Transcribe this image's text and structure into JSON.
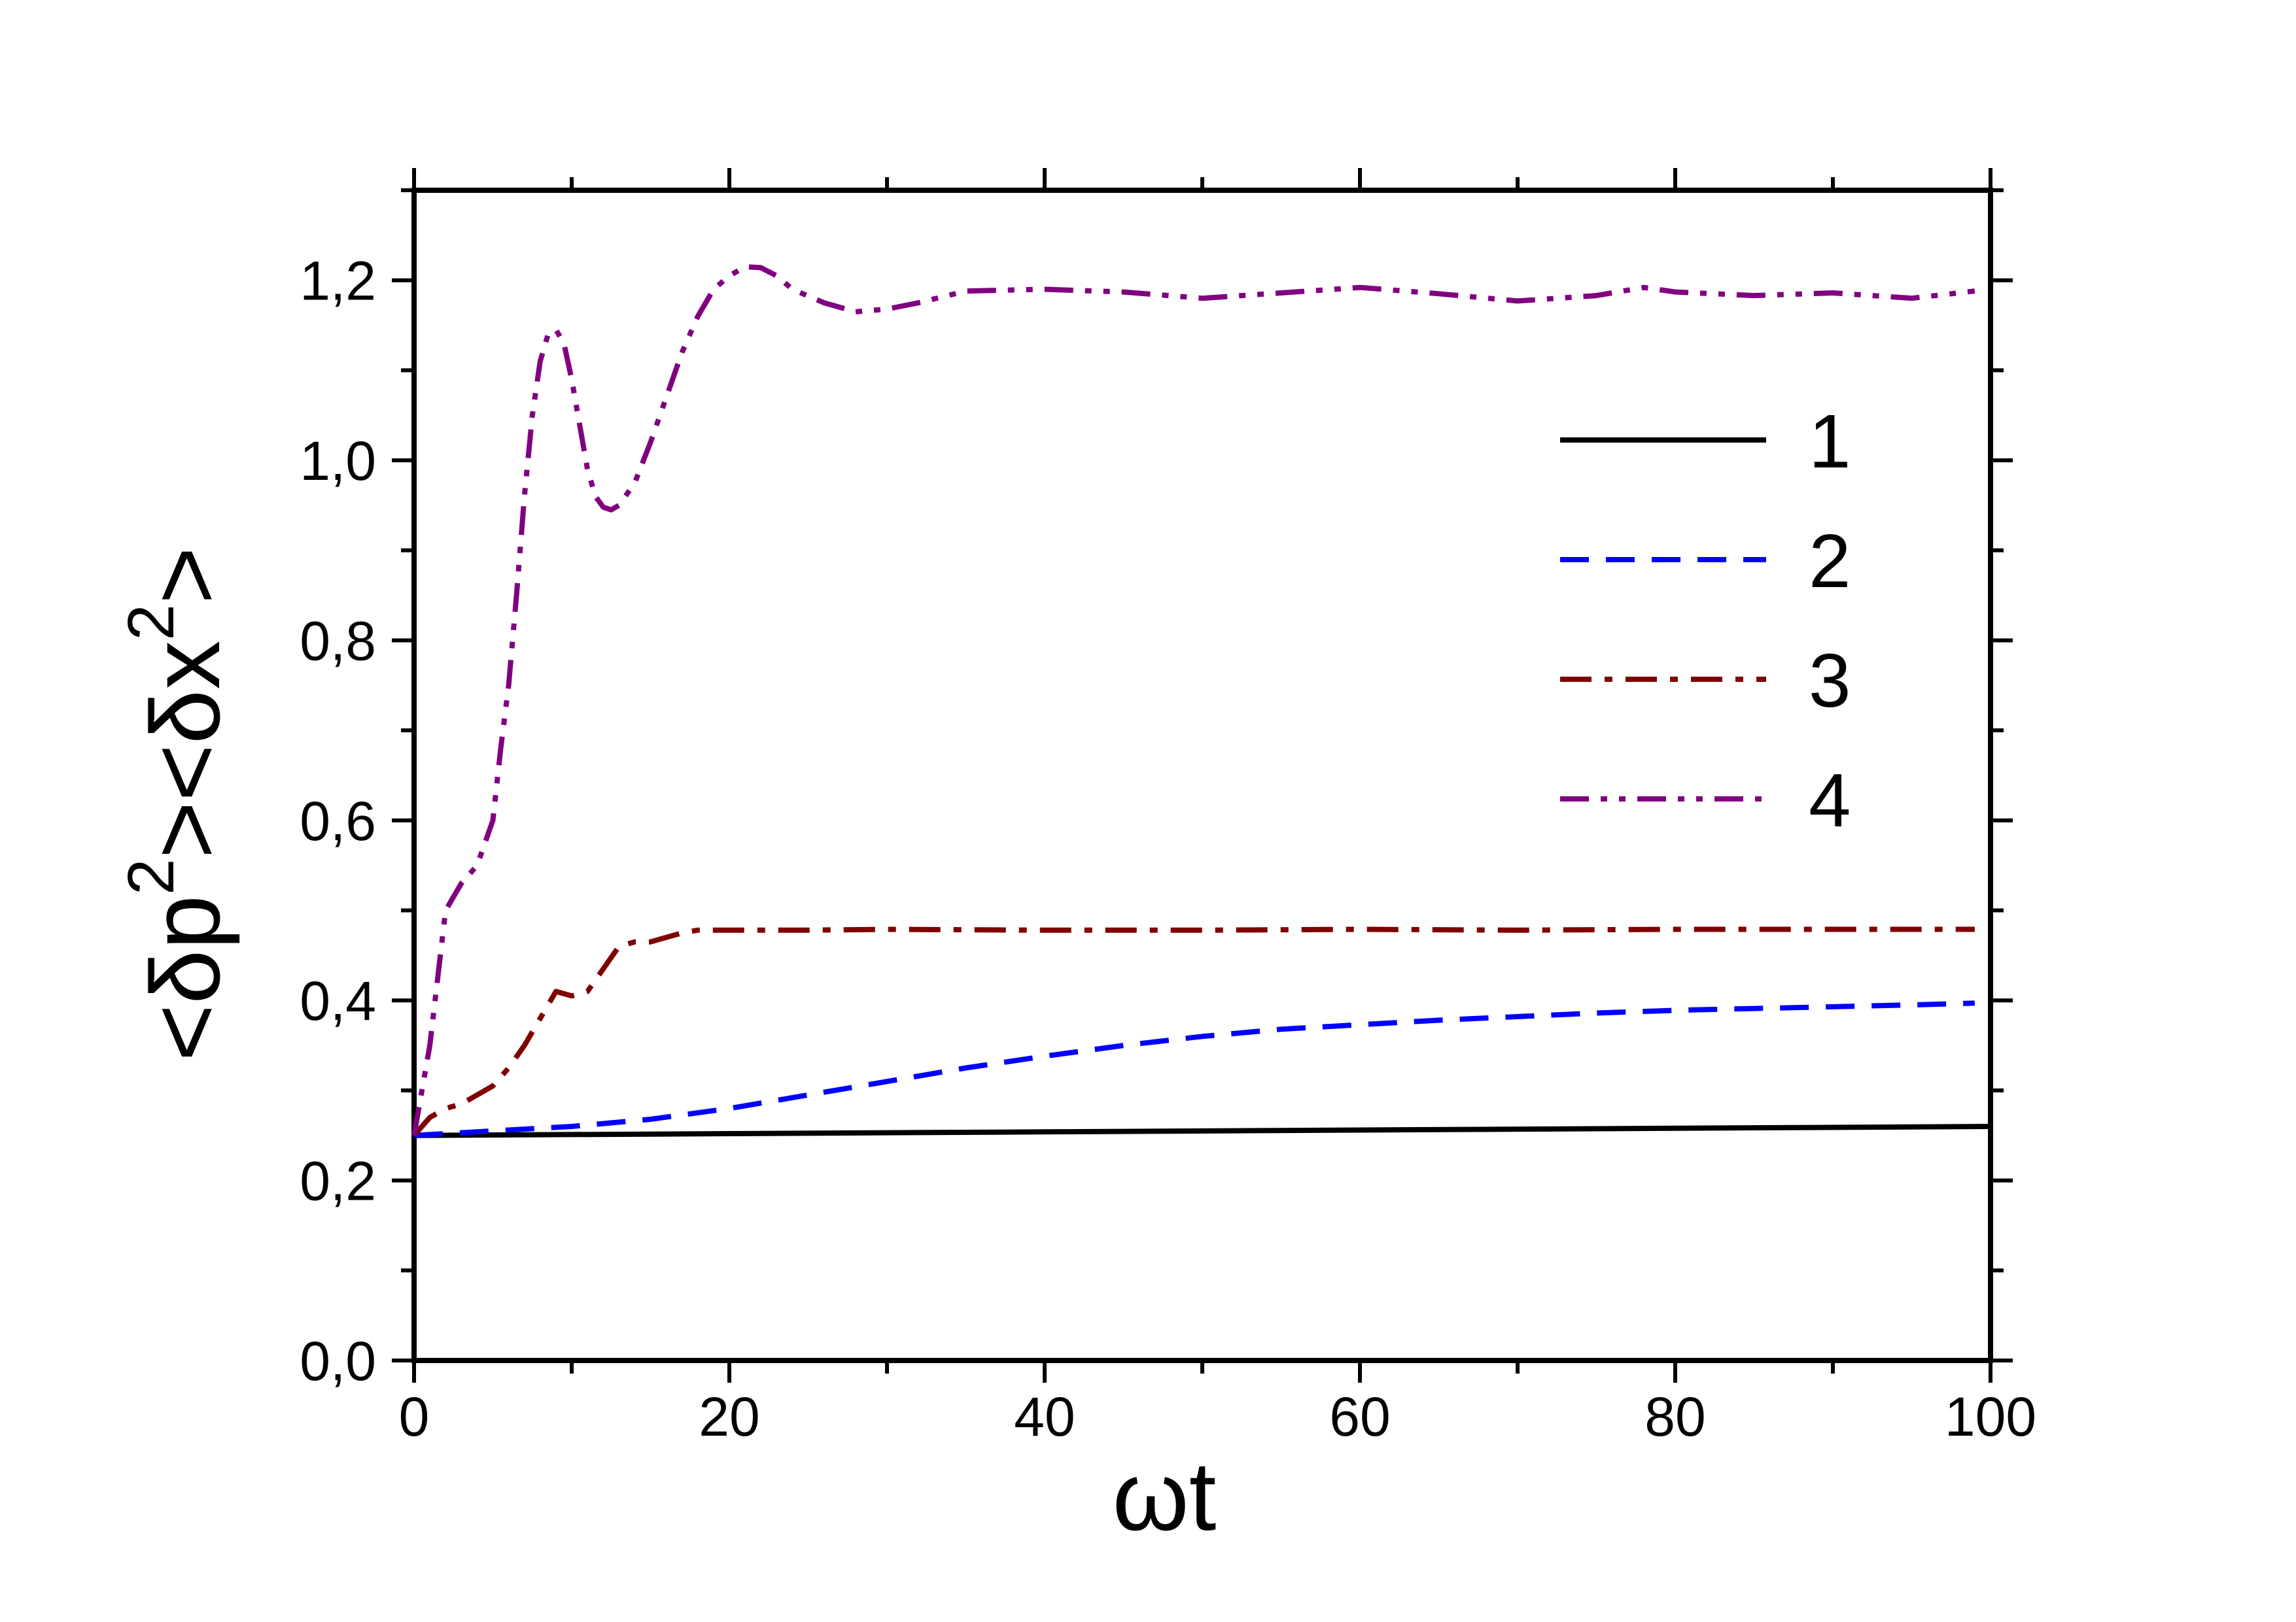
{
  "chart_data": {
    "type": "line",
    "title": "",
    "xlabel": "ωt",
    "ylabel": "<δp²><δx²>",
    "ylabel_parts": {
      "open1": "<δp",
      "sup1": "2",
      "mid": "><δx",
      "sup2": "2",
      "close": ">"
    },
    "xlim": [
      0,
      100
    ],
    "ylim": [
      0,
      1.3
    ],
    "xticks": [
      0,
      20,
      40,
      60,
      80,
      100
    ],
    "xtick_labels": [
      "0",
      "20",
      "40",
      "60",
      "80",
      "100"
    ],
    "yticks": [
      0,
      0.2,
      0.4,
      0.6,
      0.8,
      1.0,
      1.2
    ],
    "ytick_labels": [
      "0,0",
      "0,2",
      "0,4",
      "0,6",
      "0,8",
      "1,0",
      "1,2"
    ],
    "grid": false,
    "legend_position": "right",
    "series": [
      {
        "name": "1",
        "color": "#000000",
        "dash": "solid",
        "x": [
          0,
          20,
          40,
          60,
          80,
          100
        ],
        "y": [
          0.25,
          0.252,
          0.254,
          0.256,
          0.258,
          0.26
        ]
      },
      {
        "name": "2",
        "color": "#0000ff",
        "dash": "dash",
        "x": [
          0,
          5,
          10,
          15,
          20,
          25,
          30,
          35,
          40,
          45,
          50,
          55,
          60,
          65,
          70,
          75,
          80,
          85,
          90,
          95,
          99
        ],
        "y": [
          0.25,
          0.255,
          0.26,
          0.268,
          0.28,
          0.295,
          0.31,
          0.325,
          0.338,
          0.35,
          0.36,
          0.368,
          0.373,
          0.378,
          0.382,
          0.386,
          0.389,
          0.391,
          0.393,
          0.395,
          0.397
        ]
      },
      {
        "name": "3",
        "color": "#800000",
        "dash": "dashdot",
        "x": [
          0,
          1,
          2,
          3,
          4,
          5,
          6,
          7,
          8,
          9,
          10,
          11,
          12,
          13,
          14,
          15,
          16,
          17,
          18,
          20,
          25,
          30,
          40,
          50,
          60,
          70,
          80,
          90,
          99
        ],
        "y": [
          0.25,
          0.27,
          0.28,
          0.285,
          0.295,
          0.305,
          0.325,
          0.35,
          0.38,
          0.41,
          0.405,
          0.41,
          0.435,
          0.46,
          0.465,
          0.465,
          0.47,
          0.475,
          0.478,
          0.478,
          0.478,
          0.479,
          0.478,
          0.478,
          0.479,
          0.478,
          0.479,
          0.479,
          0.479
        ]
      },
      {
        "name": "4",
        "color": "#800080",
        "dash": "dashdotdot",
        "x": [
          0,
          1,
          2,
          3,
          4,
          5,
          5.5,
          6,
          6.5,
          7,
          7.5,
          8,
          8.5,
          9,
          9.5,
          10,
          10.5,
          11,
          11.5,
          12,
          12.5,
          13,
          14,
          15,
          16,
          17,
          18,
          19,
          20,
          21,
          22,
          23,
          24,
          26,
          28,
          30,
          32,
          35,
          40,
          45,
          50,
          55,
          60,
          65,
          70,
          75,
          78,
          80,
          85,
          90,
          95,
          99
        ],
        "y": [
          0.25,
          0.35,
          0.5,
          0.53,
          0.55,
          0.6,
          0.68,
          0.75,
          0.85,
          0.96,
          1.05,
          1.11,
          1.14,
          1.145,
          1.13,
          1.09,
          1.04,
          0.99,
          0.96,
          0.948,
          0.945,
          0.95,
          0.975,
          1.02,
          1.07,
          1.12,
          1.16,
          1.19,
          1.205,
          1.215,
          1.214,
          1.205,
          1.19,
          1.175,
          1.165,
          1.168,
          1.175,
          1.188,
          1.19,
          1.187,
          1.18,
          1.186,
          1.192,
          1.185,
          1.177,
          1.183,
          1.192,
          1.187,
          1.183,
          1.186,
          1.18,
          1.188
        ]
      }
    ]
  }
}
